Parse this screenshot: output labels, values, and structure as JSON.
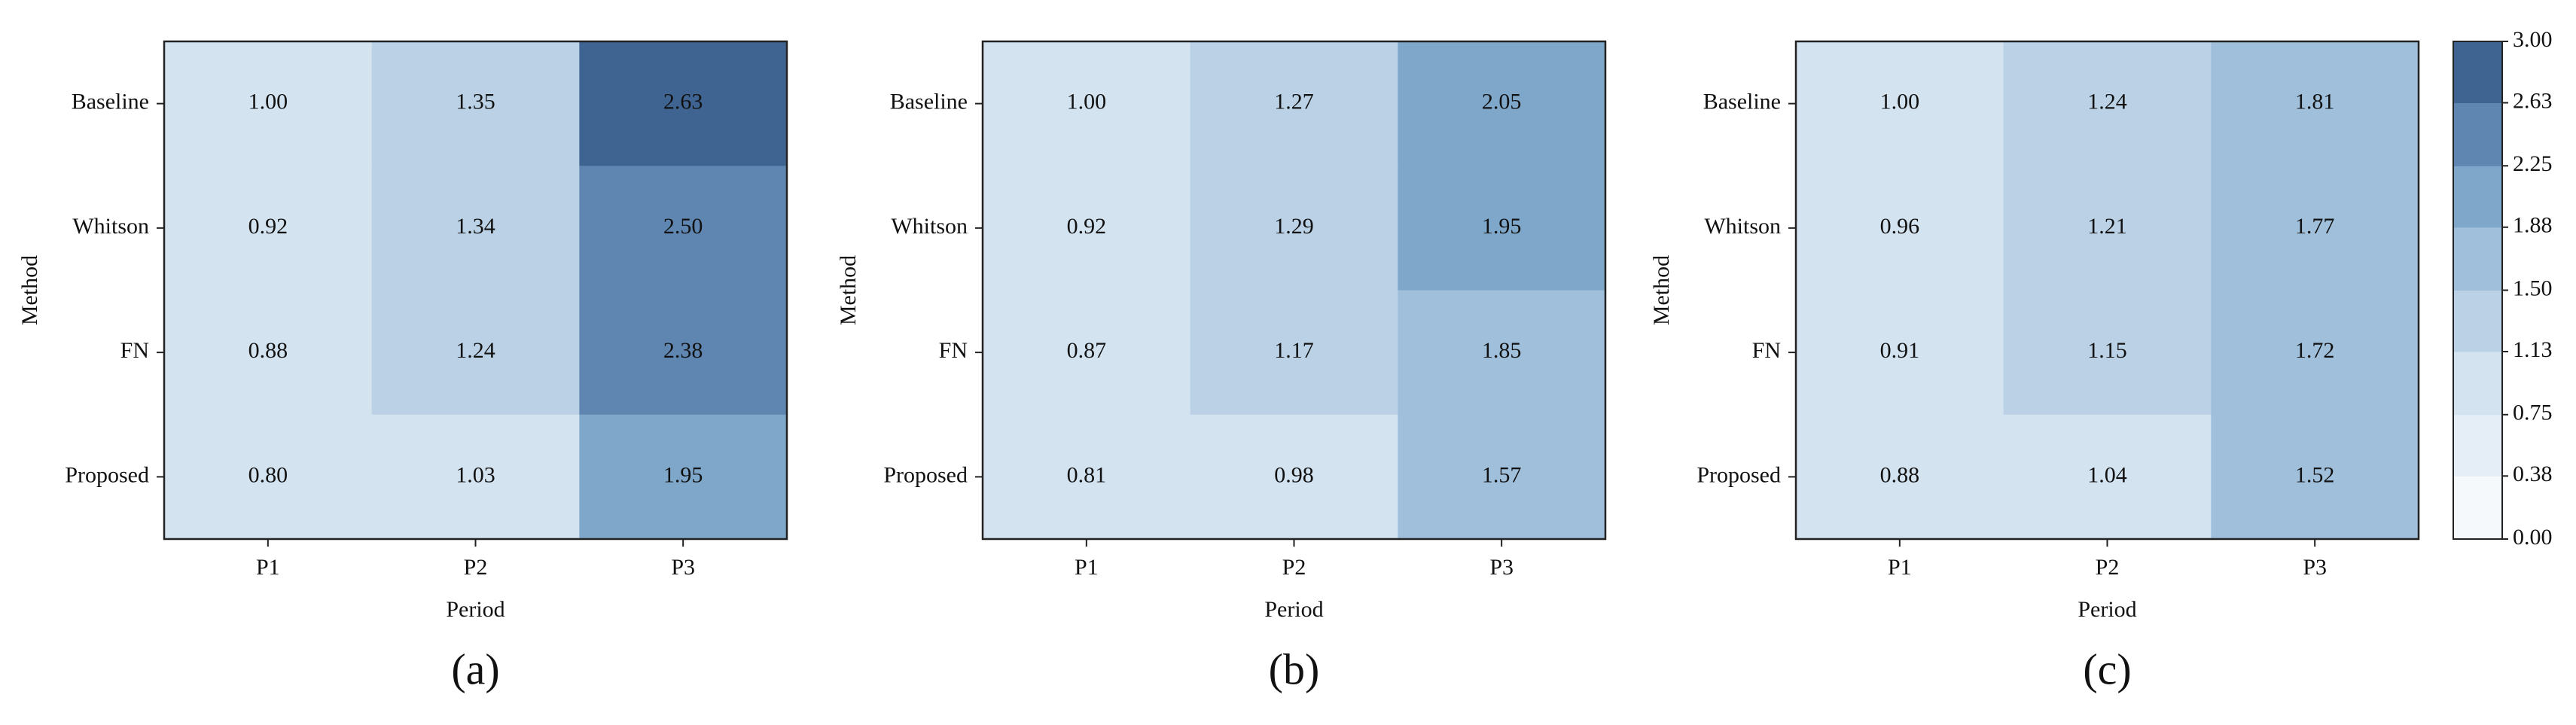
{
  "chart_data": [
    {
      "type": "heatmap",
      "title": "(a)",
      "xlabel": "Period",
      "ylabel": "Method",
      "x": [
        "P1",
        "P2",
        "P3"
      ],
      "y": [
        "Baseline",
        "Whitson",
        "FN",
        "Proposed"
      ],
      "values": [
        [
          1,
          1.35,
          2.63
        ],
        [
          0.92,
          1.34,
          2.5
        ],
        [
          0.88,
          1.24,
          2.38
        ],
        [
          0.8,
          1.03,
          1.95
        ]
      ],
      "value_labels": [
        [
          "1.00",
          "1.35",
          "2.63"
        ],
        [
          "0.92",
          "1.34",
          "2.50"
        ],
        [
          "0.88",
          "1.24",
          "2.38"
        ],
        [
          "0.80",
          "1.03",
          "1.95"
        ]
      ]
    },
    {
      "type": "heatmap",
      "title": "(b)",
      "xlabel": "Period",
      "ylabel": "Method",
      "x": [
        "P1",
        "P2",
        "P3"
      ],
      "y": [
        "Baseline",
        "Whitson",
        "FN",
        "Proposed"
      ],
      "values": [
        [
          1,
          1.27,
          2.05
        ],
        [
          0.92,
          1.29,
          1.95
        ],
        [
          0.87,
          1.17,
          1.85
        ],
        [
          0.81,
          0.98,
          1.57
        ]
      ],
      "value_labels": [
        [
          "1.00",
          "1.27",
          "2.05"
        ],
        [
          "0.92",
          "1.29",
          "1.95"
        ],
        [
          "0.87",
          "1.17",
          "1.85"
        ],
        [
          "0.81",
          "0.98",
          "1.57"
        ]
      ]
    },
    {
      "type": "heatmap",
      "title": "(c)",
      "xlabel": "Period",
      "ylabel": "Method",
      "x": [
        "P1",
        "P2",
        "P3"
      ],
      "y": [
        "Baseline",
        "Whitson",
        "FN",
        "Proposed"
      ],
      "values": [
        [
          1,
          1.24,
          1.81
        ],
        [
          0.96,
          1.21,
          1.77
        ],
        [
          0.91,
          1.15,
          1.72
        ],
        [
          0.88,
          1.04,
          1.52
        ]
      ],
      "value_labels": [
        [
          "1.00",
          "1.24",
          "1.81"
        ],
        [
          "0.96",
          "1.21",
          "1.77"
        ],
        [
          "0.91",
          "1.15",
          "1.72"
        ],
        [
          "0.88",
          "1.04",
          "1.52"
        ]
      ],
      "colorbar": {
        "zlim": [
          0,
          3
        ],
        "zticks": [
          {
            "value": 0,
            "label": "0.00"
          },
          0.38,
          0.75,
          1.13,
          {
            "value": 1.5,
            "label": "1.50"
          },
          1.88,
          2.25,
          2.63,
          {
            "value": 3,
            "label": "3.00"
          }
        ],
        "colors": [
          "#f6f9fc",
          "#e5eef6",
          "#d4e3f0",
          "#bbd2e6",
          "#9fbfdb",
          "#7ea7ca",
          "#5f85b1",
          "#3f6491"
        ]
      }
    }
  ]
}
